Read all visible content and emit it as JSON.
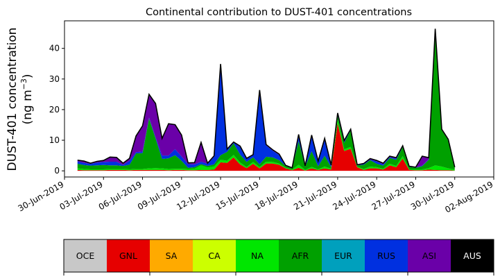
{
  "chart_data": {
    "type": "area",
    "stacked": true,
    "title": "Continental contribution to DUST-401 concentrations",
    "ylabel_line1": "DUST-401 concentration",
    "ylabel_line2": "(ng m",
    "ylabel_sup": "−3",
    "ylabel_close": ")",
    "xlabel": "",
    "x_start": "2019-07-01",
    "x_step_days": 0.5,
    "xlim": [
      "2019-06-30",
      "2019-08-02"
    ],
    "ylim": [
      -2,
      49
    ],
    "yticks": [
      0,
      10,
      20,
      30,
      40
    ],
    "xticks": [
      {
        "date": "2019-06-30",
        "label": "30-Jun-2019"
      },
      {
        "date": "2019-07-03",
        "label": "03-Jul-2019"
      },
      {
        "date": "2019-07-06",
        "label": "06-Jul-2019"
      },
      {
        "date": "2019-07-09",
        "label": "09-Jul-2019"
      },
      {
        "date": "2019-07-12",
        "label": "12-Jul-2019"
      },
      {
        "date": "2019-07-15",
        "label": "15-Jul-2019"
      },
      {
        "date": "2019-07-18",
        "label": "18-Jul-2019"
      },
      {
        "date": "2019-07-21",
        "label": "21-Jul-2019"
      },
      {
        "date": "2019-07-24",
        "label": "24-Jul-2019"
      },
      {
        "date": "2019-07-27",
        "label": "27-Jul-2019"
      },
      {
        "date": "2019-07-30",
        "label": "30-Jul-2019"
      },
      {
        "date": "2019-08-02",
        "label": "02-Aug-2019"
      }
    ],
    "grid": false,
    "legend_position": "bottom-colorbar",
    "total_line_color": "#000000",
    "series": [
      {
        "name": "GNL",
        "color": "#e60000",
        "values": [
          0.3,
          0.2,
          0.2,
          0.2,
          0.2,
          0.3,
          0.3,
          0.3,
          0.2,
          0.3,
          0.3,
          0.3,
          0.3,
          0.3,
          0.2,
          0.3,
          0.3,
          0.2,
          0.2,
          0.3,
          0.3,
          0.4,
          2.8,
          2.6,
          4.4,
          2.1,
          0.9,
          2.3,
          0.8,
          2.4,
          2.4,
          2.0,
          0.8,
          0.2,
          1.0,
          0.1,
          0.8,
          0.3,
          0.8,
          0.4,
          15.5,
          6.5,
          7.2,
          1.2,
          0.3,
          0.8,
          0.8,
          0.4,
          1.8,
          1.2,
          4.0,
          0.3,
          0.2,
          0.2,
          0.4,
          0.3,
          0.2,
          0.2,
          0.1
        ]
      },
      {
        "name": "NA",
        "color": "#00e600",
        "values": [
          0.5,
          0.4,
          0.3,
          0.3,
          0.3,
          0.3,
          0.3,
          0.3,
          0.3,
          0.3,
          0.3,
          0.5,
          0.6,
          0.5,
          0.4,
          0.4,
          0.4,
          0.4,
          0.5,
          1.5,
          0.8,
          1.0,
          0.8,
          0.7,
          0.8,
          0.6,
          0.3,
          0.6,
          0.4,
          0.6,
          0.5,
          0.4,
          0.2,
          0.2,
          1.0,
          0.2,
          0.5,
          0.2,
          0.6,
          0.3,
          1.2,
          0.5,
          0.6,
          0.2,
          0.3,
          0.6,
          0.4,
          0.3,
          0.5,
          0.4,
          0.8,
          0.2,
          0.3,
          0.3,
          0.5,
          1.5,
          1.2,
          0.6,
          0.3
        ]
      },
      {
        "name": "AFR",
        "color": "#00a000",
        "values": [
          1.5,
          1.3,
          1.2,
          1.3,
          1.4,
          1.2,
          1.2,
          1.0,
          1.5,
          5.1,
          5.2,
          16.3,
          9.7,
          3.1,
          3.5,
          4.4,
          2.6,
          0.4,
          0.5,
          0.4,
          0.5,
          0.7,
          1.5,
          2.9,
          3.8,
          2.6,
          1.7,
          1.5,
          0.9,
          1.6,
          1.5,
          1.1,
          0.6,
          0.4,
          7.7,
          1.1,
          5.1,
          1.0,
          3.5,
          0.5,
          1.3,
          2.2,
          5.4,
          0.4,
          1.4,
          2.1,
          1.1,
          1.0,
          1.9,
          2.0,
          3.0,
          0.8,
          0.5,
          1.0,
          2.7,
          43.5,
          11.9,
          9.2,
          0.6
        ]
      },
      {
        "name": "RUS",
        "color": "#0030e0",
        "values": [
          0.8,
          0.7,
          0.6,
          0.9,
          1.0,
          1.2,
          1.2,
          0.3,
          1.3,
          0.4,
          0.5,
          0.3,
          0.4,
          1.1,
          0.9,
          2.0,
          1.4,
          1.2,
          0.9,
          0.8,
          0.7,
          2.5,
          29.7,
          0.8,
          0.3,
          2.5,
          1.1,
          0.8,
          24.0,
          3.7,
          2.2,
          1.7,
          0.1,
          0.1,
          1.8,
          0.1,
          5.0,
          1.6,
          5.4,
          0.6,
          0.6,
          0.5,
          0.1,
          0.1,
          0.3,
          0.2,
          0.8,
          0.4,
          0.3,
          0.4,
          0.1,
          0.1,
          0.1,
          0.2,
          0.2,
          0.6,
          0.1,
          0.1,
          0.1
        ]
      },
      {
        "name": "ASI",
        "color": "#6a00a8",
        "values": [
          0.4,
          0.6,
          0.2,
          0.4,
          0.5,
          1.5,
          1.4,
          0.6,
          0.8,
          5.3,
          8.4,
          7.6,
          11.0,
          5.6,
          10.4,
          8.0,
          7.0,
          0.4,
          0.6,
          6.3,
          0.2,
          0.3,
          0.1,
          0.1,
          0.1,
          0.3,
          0.1,
          0.1,
          0.3,
          0.3,
          0.3,
          0.3,
          0.1,
          0.1,
          0.4,
          0.1,
          0.3,
          0.1,
          0.3,
          0.1,
          0.3,
          0.2,
          0.3,
          0.1,
          0.1,
          0.3,
          0.3,
          0.4,
          0.3,
          0.3,
          0.3,
          0.1,
          0.1,
          3.1,
          0.5,
          0.5,
          0.2,
          0.2,
          0.1
        ]
      },
      {
        "name": "OCE",
        "color": "#c8c8c8",
        "values": [
          0,
          0,
          0,
          0,
          0,
          0,
          0,
          0,
          0,
          0,
          0,
          0,
          0,
          0,
          0,
          0,
          0,
          0,
          0,
          0,
          0,
          0,
          0,
          0,
          0,
          0,
          0,
          0,
          0,
          0,
          0,
          0,
          0,
          0,
          0,
          0,
          0,
          0,
          0,
          0,
          0,
          0,
          0,
          0,
          0,
          0,
          0,
          0,
          0,
          0,
          0,
          0,
          0,
          0,
          0,
          0,
          0,
          0,
          0
        ]
      },
      {
        "name": "SA",
        "color": "#ffaa00",
        "values": [
          0,
          0,
          0,
          0,
          0,
          0,
          0,
          0,
          0,
          0,
          0,
          0,
          0,
          0,
          0,
          0,
          0,
          0,
          0,
          0,
          0,
          0,
          0,
          0,
          0,
          0,
          0,
          0,
          0,
          0,
          0,
          0,
          0,
          0,
          0,
          0,
          0,
          0,
          0,
          0,
          0,
          0,
          0,
          0,
          0,
          0,
          0,
          0,
          0,
          0,
          0,
          0,
          0,
          0,
          0,
          0,
          0,
          0,
          0
        ]
      },
      {
        "name": "CA",
        "color": "#ccff00",
        "values": [
          0,
          0,
          0,
          0,
          0,
          0,
          0,
          0,
          0,
          0,
          0,
          0,
          0,
          0,
          0,
          0,
          0,
          0,
          0,
          0,
          0,
          0,
          0,
          0,
          0,
          0,
          0,
          0,
          0,
          0,
          0,
          0,
          0,
          0,
          0,
          0,
          0,
          0,
          0,
          0,
          0,
          0,
          0,
          0,
          0,
          0,
          0,
          0,
          0,
          0,
          0,
          0,
          0,
          0,
          0,
          0,
          0,
          0,
          0
        ]
      },
      {
        "name": "EUR",
        "color": "#00a0bd",
        "values": [
          0,
          0,
          0,
          0,
          0,
          0,
          0,
          0,
          0,
          0,
          0,
          0,
          0,
          0,
          0,
          0,
          0,
          0,
          0,
          0,
          0,
          0,
          0,
          0,
          0,
          0,
          0,
          0,
          0,
          0,
          0,
          0,
          0,
          0,
          0,
          0,
          0,
          0,
          0,
          0,
          0,
          0,
          0,
          0,
          0,
          0,
          0,
          0,
          0,
          0,
          0,
          0,
          0,
          0,
          0,
          0,
          0,
          0,
          0
        ]
      },
      {
        "name": "AUS",
        "color": "#000000",
        "values": [
          0,
          0,
          0,
          0,
          0,
          0,
          0,
          0,
          0,
          0,
          0,
          0,
          0,
          0,
          0,
          0,
          0,
          0,
          0,
          0,
          0,
          0,
          0,
          0,
          0,
          0,
          0,
          0,
          0,
          0,
          0,
          0,
          0,
          0,
          0,
          0,
          0,
          0,
          0,
          0,
          0,
          0,
          0,
          0,
          0,
          0,
          0,
          0,
          0,
          0,
          0,
          0,
          0,
          0,
          0,
          0,
          0,
          0,
          0
        ]
      }
    ],
    "legend": [
      {
        "name": "OCE",
        "color": "#c8c8c8",
        "text_color": "#000000"
      },
      {
        "name": "GNL",
        "color": "#e60000",
        "text_color": "#000000"
      },
      {
        "name": "SA",
        "color": "#ffaa00",
        "text_color": "#000000"
      },
      {
        "name": "CA",
        "color": "#ccff00",
        "text_color": "#000000"
      },
      {
        "name": "NA",
        "color": "#00e600",
        "text_color": "#000000"
      },
      {
        "name": "AFR",
        "color": "#00a000",
        "text_color": "#000000"
      },
      {
        "name": "EUR",
        "color": "#00a0bd",
        "text_color": "#000000"
      },
      {
        "name": "RUS",
        "color": "#0030e0",
        "text_color": "#000000"
      },
      {
        "name": "ASI",
        "color": "#6a00a8",
        "text_color": "#000000"
      },
      {
        "name": "AUS",
        "color": "#000000",
        "text_color": "#ffffff"
      }
    ]
  }
}
